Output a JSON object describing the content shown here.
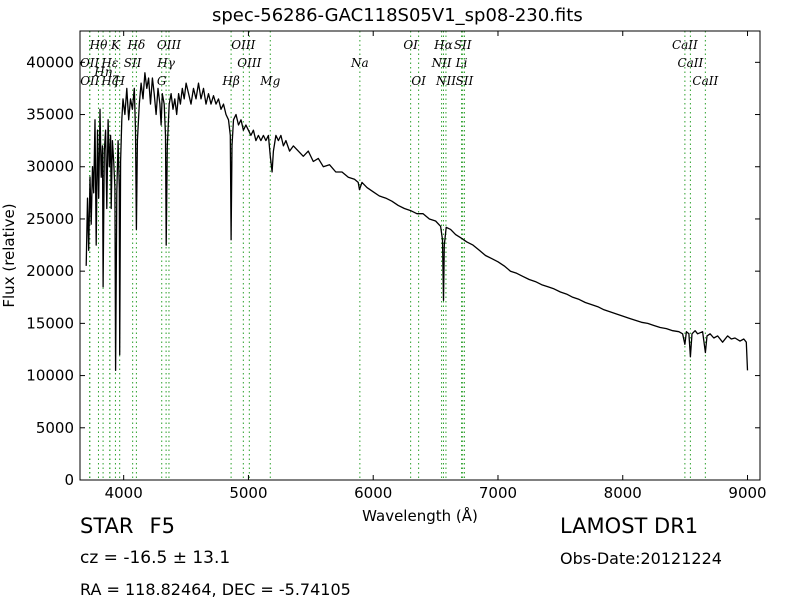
{
  "header": {
    "title": "spec-56286-GAC118S05V1_sp08-230.fits"
  },
  "footer": {
    "object_class": "STAR",
    "subclass": "F5",
    "redshift": "cz = -16.5 ± 13.1",
    "coordinates": "RA = 118.82464, DEC = -5.74105",
    "survey": "LAMOST DR1",
    "obs_date": "Obs-Date:20121224"
  },
  "colors": {
    "spectrum": "#000000",
    "line_markers": "#2ca02c",
    "axes": "#000000"
  },
  "chart_data": {
    "type": "line",
    "title": "spec-56286-GAC118S05V1_sp08-230.fits",
    "xlabel": "Wavelength (Å)",
    "ylabel": "Flux (relative)",
    "xlim": [
      3650,
      9100
    ],
    "ylim": [
      0,
      43000
    ],
    "xticks": [
      4000,
      5000,
      6000,
      7000,
      8000,
      9000
    ],
    "yticks": [
      0,
      5000,
      10000,
      15000,
      20000,
      25000,
      30000,
      35000,
      40000
    ],
    "grid": false,
    "legend": "none",
    "series": [
      {
        "points": [
          [
            3700,
            20500
          ],
          [
            3710,
            27000
          ],
          [
            3720,
            22000
          ],
          [
            3730,
            29000
          ],
          [
            3740,
            24500
          ],
          [
            3750,
            30000
          ],
          [
            3760,
            27500
          ],
          [
            3770,
            34500
          ],
          [
            3780,
            22500
          ],
          [
            3790,
            33500
          ],
          [
            3800,
            27000
          ],
          [
            3810,
            35500
          ],
          [
            3820,
            29000
          ],
          [
            3830,
            32000
          ],
          [
            3835,
            18500
          ],
          [
            3845,
            31500
          ],
          [
            3855,
            33500
          ],
          [
            3865,
            26000
          ],
          [
            3875,
            34500
          ],
          [
            3885,
            30000
          ],
          [
            3895,
            33000
          ],
          [
            3900,
            26000
          ],
          [
            3910,
            32500
          ],
          [
            3920,
            30500
          ],
          [
            3930,
            28000
          ],
          [
            3935,
            10500
          ],
          [
            3945,
            27500
          ],
          [
            3955,
            32500
          ],
          [
            3965,
            28000
          ],
          [
            3968,
            12000
          ],
          [
            3975,
            30500
          ],
          [
            3985,
            34500
          ],
          [
            3995,
            36500
          ],
          [
            4010,
            35000
          ],
          [
            4025,
            37500
          ],
          [
            4040,
            34500
          ],
          [
            4055,
            36500
          ],
          [
            4070,
            35500
          ],
          [
            4085,
            37500
          ],
          [
            4095,
            33500
          ],
          [
            4102,
            24000
          ],
          [
            4110,
            32500
          ],
          [
            4125,
            36000
          ],
          [
            4140,
            38000
          ],
          [
            4155,
            36500
          ],
          [
            4170,
            39000
          ],
          [
            4185,
            37500
          ],
          [
            4200,
            38500
          ],
          [
            4215,
            36000
          ],
          [
            4230,
            38500
          ],
          [
            4245,
            37000
          ],
          [
            4260,
            35000
          ],
          [
            4275,
            37500
          ],
          [
            4290,
            36000
          ],
          [
            4300,
            34000
          ],
          [
            4310,
            37000
          ],
          [
            4325,
            36000
          ],
          [
            4335,
            33000
          ],
          [
            4341,
            22500
          ],
          [
            4350,
            32000
          ],
          [
            4365,
            36000
          ],
          [
            4380,
            37000
          ],
          [
            4395,
            35500
          ],
          [
            4410,
            36500
          ],
          [
            4425,
            35000
          ],
          [
            4440,
            37000
          ],
          [
            4455,
            36000
          ],
          [
            4470,
            37500
          ],
          [
            4485,
            36500
          ],
          [
            4500,
            38000
          ],
          [
            4520,
            37000
          ],
          [
            4540,
            36000
          ],
          [
            4560,
            37500
          ],
          [
            4580,
            36500
          ],
          [
            4600,
            38000
          ],
          [
            4620,
            36500
          ],
          [
            4640,
            37500
          ],
          [
            4660,
            36000
          ],
          [
            4680,
            37000
          ],
          [
            4700,
            36000
          ],
          [
            4720,
            36800
          ],
          [
            4740,
            36000
          ],
          [
            4760,
            36500
          ],
          [
            4780,
            35500
          ],
          [
            4800,
            36000
          ],
          [
            4820,
            35000
          ],
          [
            4840,
            34500
          ],
          [
            4855,
            33000
          ],
          [
            4861,
            23000
          ],
          [
            4868,
            32000
          ],
          [
            4880,
            34500
          ],
          [
            4900,
            35000
          ],
          [
            4920,
            34000
          ],
          [
            4940,
            34500
          ],
          [
            4960,
            33500
          ],
          [
            4980,
            34000
          ],
          [
            5000,
            33500
          ],
          [
            5020,
            33000
          ],
          [
            5040,
            33500
          ],
          [
            5060,
            32500
          ],
          [
            5080,
            33000
          ],
          [
            5100,
            32500
          ],
          [
            5120,
            33000
          ],
          [
            5140,
            32500
          ],
          [
            5160,
            33000
          ],
          [
            5175,
            31000
          ],
          [
            5190,
            29500
          ],
          [
            5200,
            31500
          ],
          [
            5220,
            33000
          ],
          [
            5240,
            32500
          ],
          [
            5260,
            33000
          ],
          [
            5280,
            32000
          ],
          [
            5300,
            32500
          ],
          [
            5330,
            31500
          ],
          [
            5360,
            32000
          ],
          [
            5400,
            31500
          ],
          [
            5440,
            31000
          ],
          [
            5480,
            31500
          ],
          [
            5520,
            30500
          ],
          [
            5560,
            30800
          ],
          [
            5600,
            30000
          ],
          [
            5650,
            30200
          ],
          [
            5700,
            29500
          ],
          [
            5750,
            29500
          ],
          [
            5800,
            29000
          ],
          [
            5850,
            28800
          ],
          [
            5880,
            28500
          ],
          [
            5890,
            27800
          ],
          [
            5896,
            28000
          ],
          [
            5910,
            28500
          ],
          [
            5950,
            28000
          ],
          [
            6000,
            27600
          ],
          [
            6050,
            27200
          ],
          [
            6100,
            27000
          ],
          [
            6150,
            26700
          ],
          [
            6200,
            26300
          ],
          [
            6250,
            26000
          ],
          [
            6300,
            25800
          ],
          [
            6350,
            25500
          ],
          [
            6400,
            25500
          ],
          [
            6450,
            25000
          ],
          [
            6500,
            24800
          ],
          [
            6540,
            24300
          ],
          [
            6555,
            23000
          ],
          [
            6563,
            17200
          ],
          [
            6570,
            22500
          ],
          [
            6585,
            24200
          ],
          [
            6620,
            24000
          ],
          [
            6660,
            23500
          ],
          [
            6700,
            23200
          ],
          [
            6750,
            22800
          ],
          [
            6800,
            22500
          ],
          [
            6850,
            22000
          ],
          [
            6900,
            21500
          ],
          [
            6950,
            21200
          ],
          [
            7000,
            20900
          ],
          [
            7050,
            20500
          ],
          [
            7100,
            20000
          ],
          [
            7150,
            19800
          ],
          [
            7200,
            19500
          ],
          [
            7250,
            19200
          ],
          [
            7300,
            19000
          ],
          [
            7350,
            18700
          ],
          [
            7400,
            18500
          ],
          [
            7450,
            18300
          ],
          [
            7500,
            18000
          ],
          [
            7550,
            17800
          ],
          [
            7600,
            17500
          ],
          [
            7650,
            17300
          ],
          [
            7700,
            17000
          ],
          [
            7750,
            16800
          ],
          [
            7800,
            16600
          ],
          [
            7850,
            16300
          ],
          [
            7900,
            16100
          ],
          [
            7950,
            15900
          ],
          [
            8000,
            15700
          ],
          [
            8050,
            15500
          ],
          [
            8100,
            15300
          ],
          [
            8150,
            15100
          ],
          [
            8200,
            15000
          ],
          [
            8250,
            14800
          ],
          [
            8300,
            14600
          ],
          [
            8350,
            14500
          ],
          [
            8400,
            14300
          ],
          [
            8450,
            14200
          ],
          [
            8480,
            14000
          ],
          [
            8498,
            13000
          ],
          [
            8510,
            14200
          ],
          [
            8530,
            14000
          ],
          [
            8542,
            11800
          ],
          [
            8555,
            14000
          ],
          [
            8580,
            14300
          ],
          [
            8600,
            14000
          ],
          [
            8640,
            14200
          ],
          [
            8662,
            12200
          ],
          [
            8675,
            13800
          ],
          [
            8700,
            14000
          ],
          [
            8730,
            13600
          ],
          [
            8760,
            13800
          ],
          [
            8800,
            13200
          ],
          [
            8840,
            13800
          ],
          [
            8870,
            13500
          ],
          [
            8900,
            13600
          ],
          [
            8940,
            13300
          ],
          [
            8970,
            13500
          ],
          [
            8990,
            13200
          ],
          [
            9000,
            10500
          ]
        ]
      }
    ],
    "spectral_lines": [
      {
        "label": "Hθ",
        "x": 3798,
        "row": 0
      },
      {
        "label": "K",
        "x": 3934,
        "row": 0
      },
      {
        "label": "Hδ",
        "x": 4102,
        "row": 0
      },
      {
        "label": "OIII",
        "x": 4363,
        "row": 0
      },
      {
        "label": "OIII",
        "x": 4959,
        "row": 0
      },
      {
        "label": "OI",
        "x": 6300,
        "row": 0
      },
      {
        "label": "Hα",
        "x": 6563,
        "row": 0
      },
      {
        "label": "SII",
        "x": 6717,
        "row": 0
      },
      {
        "label": "CaII",
        "x": 8498,
        "row": 0
      },
      {
        "label": "OII",
        "x": 3727,
        "row": 1
      },
      {
        "label": "Hε",
        "x": 3889,
        "row": 1
      },
      {
        "label": "SII",
        "x": 4072,
        "row": 1
      },
      {
        "label": "Hγ",
        "x": 4340,
        "row": 1
      },
      {
        "label": "OIII",
        "x": 5007,
        "row": 1
      },
      {
        "label": "Na",
        "x": 5893,
        "row": 1
      },
      {
        "label": "NII",
        "x": 6548,
        "row": 1
      },
      {
        "label": "Li",
        "x": 6708,
        "row": 1
      },
      {
        "label": "CaII",
        "x": 8542,
        "row": 1
      },
      {
        "label": "Hη",
        "x": 3835,
        "row": 1.5
      },
      {
        "label": "OII",
        "x": 3729,
        "row": 2
      },
      {
        "label": "Hζ",
        "x": 3889,
        "row": 2
      },
      {
        "label": "H",
        "x": 3968,
        "row": 2
      },
      {
        "label": "G",
        "x": 4305,
        "row": 2
      },
      {
        "label": "Hβ",
        "x": 4861,
        "row": 2
      },
      {
        "label": "Mg",
        "x": 5175,
        "row": 2
      },
      {
        "label": "OI",
        "x": 6364,
        "row": 2
      },
      {
        "label": "NII",
        "x": 6583,
        "row": 2
      },
      {
        "label": "SII",
        "x": 6731,
        "row": 2
      },
      {
        "label": "CaII",
        "x": 8662,
        "row": 2
      }
    ]
  }
}
